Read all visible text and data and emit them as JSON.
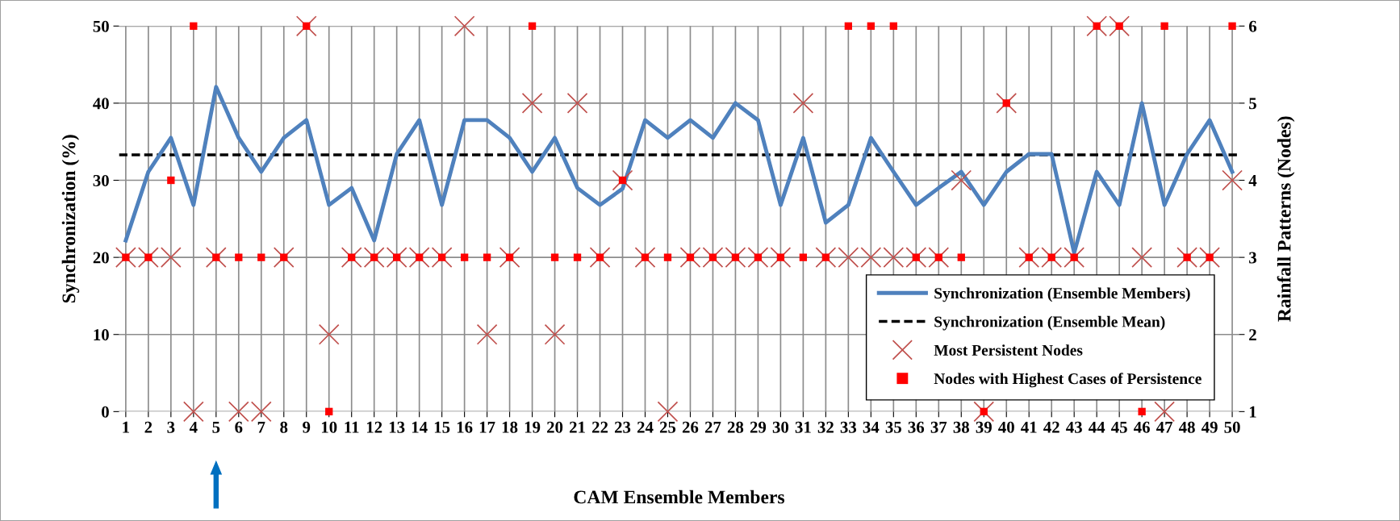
{
  "chart_data": {
    "type": "line",
    "xlabel": "CAM Ensemble Members",
    "ylabel": "Synchronization (%)",
    "y2label": "Rainfall Patterns (Nodes)",
    "categories": [
      "1",
      "2",
      "3",
      "4",
      "5",
      "6",
      "7",
      "8",
      "9",
      "10",
      "11",
      "12",
      "13",
      "14",
      "15",
      "16",
      "17",
      "18",
      "19",
      "20",
      "21",
      "22",
      "23",
      "24",
      "25",
      "26",
      "27",
      "28",
      "29",
      "30",
      "31",
      "32",
      "33",
      "34",
      "35",
      "36",
      "37",
      "38",
      "39",
      "40",
      "41",
      "42",
      "43",
      "44",
      "45",
      "46",
      "47",
      "48",
      "49",
      "50"
    ],
    "series": [
      {
        "name": "Synchronization (Ensemble Members)",
        "color": "#4f81bd",
        "marker": "none",
        "line_style": "solid",
        "values": [
          22.2,
          31.1,
          35.5,
          26.8,
          42.1,
          35.5,
          31.1,
          35.5,
          37.8,
          26.8,
          29.0,
          22.2,
          33.4,
          37.8,
          26.8,
          37.8,
          37.8,
          35.5,
          31.1,
          35.5,
          29.0,
          26.8,
          28.9,
          37.8,
          35.5,
          37.8,
          35.5,
          40.0,
          37.8,
          26.8,
          35.5,
          24.5,
          26.8,
          35.5,
          31.1,
          26.8,
          29.0,
          31.1,
          26.8,
          31.1,
          33.4,
          33.4,
          20.6,
          31.1,
          26.8,
          40.0,
          26.8,
          33.4,
          37.8,
          31.1
        ]
      },
      {
        "name": "Most Persistent Nodes",
        "type": "scatter",
        "axis": "y2",
        "color": "#c0504d",
        "marker": "cross",
        "values": [
          3,
          3,
          3,
          1,
          3,
          1,
          1,
          3,
          6,
          2,
          3,
          3,
          3,
          3,
          3,
          6,
          2,
          3,
          5,
          2,
          5,
          3,
          4,
          3,
          1,
          3,
          3,
          3,
          3,
          3,
          5,
          3,
          3,
          3,
          3,
          3,
          3,
          4,
          1,
          5,
          3,
          3,
          3,
          6,
          6,
          3,
          1,
          3,
          3,
          4
        ]
      },
      {
        "name": "Nodes with Highest Cases of Persistence",
        "type": "scatter",
        "axis": "y2",
        "color": "#ff0000",
        "marker": "square",
        "values": [
          3,
          3,
          4,
          6,
          3,
          3,
          3,
          3,
          6,
          1,
          3,
          3,
          3,
          3,
          3,
          3,
          3,
          3,
          6,
          3,
          3,
          3,
          4,
          3,
          3,
          3,
          3,
          3,
          3,
          3,
          3,
          3,
          6,
          6,
          6,
          3,
          3,
          3,
          1,
          5,
          3,
          3,
          3,
          6,
          6,
          1,
          6,
          3,
          3,
          6
        ]
      }
    ],
    "ref_lines": [
      {
        "axis": "y",
        "value": 33.3,
        "label": "Synchronization (Ensemble Mean)",
        "color": "#000000",
        "line_style": "dashed"
      }
    ],
    "ylim": [
      0,
      50
    ],
    "yticks": [
      0,
      10,
      20,
      30,
      40,
      50
    ],
    "y2lim": [
      1,
      6
    ],
    "y2ticks": [
      1,
      2,
      3,
      4,
      5,
      6
    ],
    "grid": true,
    "legend": "bottom right"
  }
}
